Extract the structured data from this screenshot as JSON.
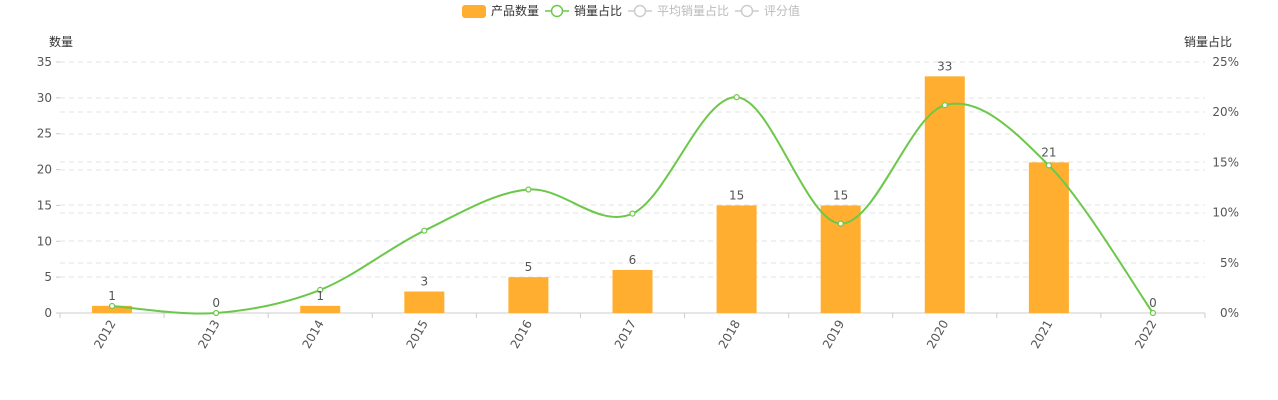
{
  "chart_data": {
    "type": "bar",
    "categories": [
      "2012",
      "2013",
      "2014",
      "2015",
      "2016",
      "2017",
      "2018",
      "2019",
      "2020",
      "2021",
      "2022"
    ],
    "series": [
      {
        "name": "产品数量",
        "type": "bar",
        "axis": "left",
        "color": "#FFAE2F",
        "values": [
          1,
          0,
          1,
          3,
          5,
          6,
          15,
          15,
          33,
          21,
          0
        ],
        "show_labels": true,
        "enabled": true
      },
      {
        "name": "销量占比",
        "type": "line",
        "axis": "right",
        "color": "#6CC84A",
        "values": [
          0.7,
          0.0,
          2.3,
          8.2,
          12.3,
          9.9,
          21.5,
          8.9,
          20.7,
          14.7,
          0.0
        ],
        "smooth": true,
        "enabled": true
      },
      {
        "name": "平均销量占比",
        "type": "line",
        "axis": "right",
        "color": "#CCCCCC",
        "enabled": false
      },
      {
        "name": "评分值",
        "type": "line",
        "axis": "right",
        "color": "#CCCCCC",
        "enabled": false
      }
    ],
    "y_left": {
      "label": "数量",
      "ticks": [
        0,
        5,
        10,
        15,
        20,
        25,
        30,
        35
      ],
      "range": [
        0,
        35
      ]
    },
    "y_right": {
      "label": "销量占比",
      "ticks": [
        "0%",
        "5%",
        "10%",
        "15%",
        "20%",
        "25%"
      ],
      "range": [
        0,
        25
      ]
    },
    "grid": "dashed horizontal",
    "legend": "top-center",
    "x_labels_rotated": true
  }
}
